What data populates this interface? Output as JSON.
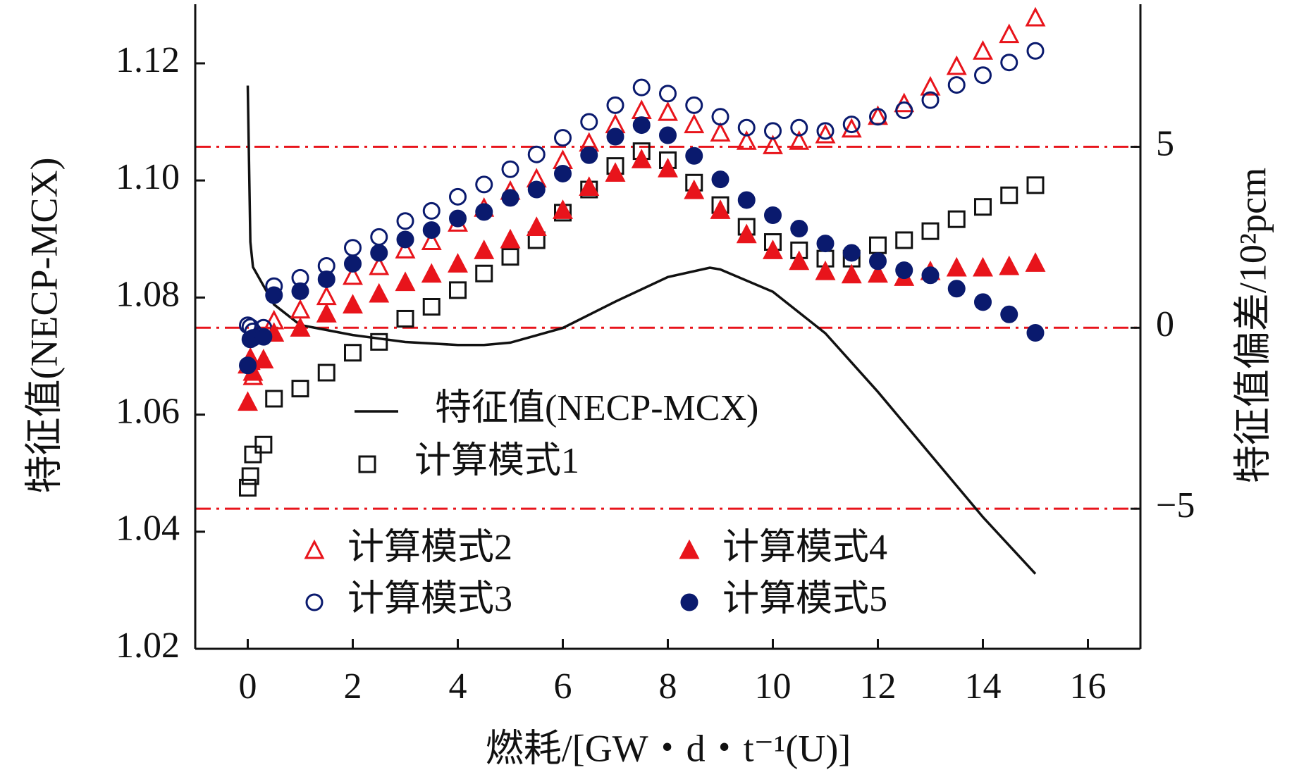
{
  "chart_data": {
    "type": "line",
    "x_label": "燃耗/[GW・d・t⁻¹(U)]",
    "y_label": "特征值(NECP-MCX)",
    "y2_label": "特征值偏差/10²pcm",
    "xlim": [
      -1,
      17
    ],
    "xticks": [
      0,
      2,
      4,
      6,
      8,
      10,
      12,
      14,
      16
    ],
    "ylim": [
      1.02,
      1.1301
    ],
    "yticks": [
      1.02,
      1.04,
      1.06,
      1.08,
      {
        "value": 1.1,
        "label": "1.10"
      },
      1.12
    ],
    "y2lim": [
      -8.87,
      8.94
    ],
    "y2ticks": [
      {
        "value": -5,
        "label": "−5"
      },
      0,
      5
    ],
    "y2grid": true,
    "grid_color": "#e8141b",
    "series": [
      {
        "name": "特征值(NECP-MCX)",
        "color": "#111111",
        "marker": "none",
        "x": [
          0,
          0.05,
          0.1,
          0.5,
          1,
          2,
          3,
          4,
          4.5,
          5,
          6,
          7,
          8,
          8.8,
          9,
          10,
          11,
          12,
          13,
          14,
          15
        ],
        "values": [
          1.1162,
          1.0895,
          1.0852,
          1.0788,
          1.0753,
          1.0736,
          1.0724,
          1.0719,
          1.0719,
          1.0723,
          1.0748,
          1.0793,
          1.0835,
          1.0851,
          1.0848,
          1.081,
          1.0739,
          1.0639,
          1.0532,
          1.0425,
          1.0328
        ]
      },
      {
        "name": "计算模式1",
        "color": "#111111",
        "marker": "square",
        "filled": false,
        "axis": "y2",
        "x": [
          0,
          0.05,
          0.1,
          0.3,
          0.5,
          1,
          1.5,
          2,
          2.5,
          3,
          3.5,
          4,
          4.5,
          5,
          5.5,
          6,
          6.5,
          7,
          7.5,
          8,
          8.5,
          9,
          9.5,
          10,
          10.5,
          11,
          11.5,
          12,
          12.5,
          13,
          13.5,
          14,
          14.5,
          15
        ],
        "values": [
          -4.42,
          -4.1,
          -3.5,
          -3.23,
          -1.96,
          -1.68,
          -1.24,
          -0.69,
          -0.39,
          0.25,
          0.58,
          1.04,
          1.5,
          1.96,
          2.42,
          3.18,
          3.82,
          4.47,
          4.88,
          4.63,
          4.01,
          3.39,
          2.79,
          2.37,
          2.14,
          1.91,
          1.91,
          2.28,
          2.42,
          2.67,
          3.0,
          3.34,
          3.66,
          3.94
        ]
      },
      {
        "name": "计算模式2",
        "color": "#e8141b",
        "marker": "triangle",
        "filled": false,
        "axis": "y2",
        "x": [
          0,
          0.05,
          0.1,
          0.3,
          0.5,
          1,
          1.5,
          2,
          2.5,
          3,
          3.5,
          4,
          4.5,
          5,
          5.5,
          6,
          6.5,
          7,
          7.5,
          8,
          8.5,
          9,
          9.5,
          10,
          10.5,
          11,
          11.5,
          12,
          12.5,
          13,
          13.5,
          14,
          14.5,
          15
        ],
        "values": [
          -1.04,
          -0.85,
          -1.36,
          -0.9,
          0.18,
          0.48,
          0.85,
          1.41,
          1.68,
          2.14,
          2.37,
          2.88,
          3.29,
          3.76,
          4.1,
          4.61,
          5.09,
          5.6,
          5.99,
          5.94,
          5.6,
          5.37,
          5.14,
          5.02,
          5.14,
          5.32,
          5.48,
          5.83,
          6.18,
          6.64,
          7.21,
          7.63,
          8.09,
          8.55
        ]
      },
      {
        "name": "计算模式3",
        "color": "#0a1a6e",
        "marker": "circle",
        "filled": false,
        "axis": "y2",
        "x": [
          0,
          0.05,
          0.1,
          0.3,
          0.5,
          1,
          1.5,
          2,
          2.5,
          3,
          3.5,
          4,
          4.5,
          5,
          5.5,
          6,
          6.5,
          7,
          7.5,
          8,
          8.5,
          9,
          9.5,
          10,
          10.5,
          11,
          11.5,
          12,
          12.5,
          13,
          13.5,
          14,
          14.5,
          15
        ],
        "values": [
          0.07,
          0.02,
          -0.1,
          0.0,
          1.15,
          1.38,
          1.71,
          2.21,
          2.51,
          2.95,
          3.23,
          3.62,
          3.96,
          4.38,
          4.79,
          5.25,
          5.69,
          6.15,
          6.64,
          6.47,
          6.15,
          5.83,
          5.53,
          5.44,
          5.53,
          5.44,
          5.62,
          5.83,
          6.01,
          6.29,
          6.71,
          6.98,
          7.33,
          7.65
        ]
      },
      {
        "name": "计算模式4",
        "color": "#e8141b",
        "marker": "triangle",
        "filled": true,
        "axis": "y2",
        "x": [
          0,
          0.05,
          0.1,
          0.3,
          0.5,
          1,
          1.5,
          2,
          2.5,
          3,
          3.5,
          4,
          4.5,
          5,
          5.5,
          6,
          6.5,
          7,
          7.5,
          8,
          8.5,
          9,
          9.5,
          10,
          10.5,
          11,
          11.5,
          12,
          12.5,
          13,
          13.5,
          14,
          14.5,
          15
        ],
        "values": [
          -2.07,
          -0.94,
          -1.24,
          -0.9,
          -0.16,
          -0.02,
          0.37,
          0.62,
          0.92,
          1.24,
          1.47,
          1.75,
          2.12,
          2.42,
          2.76,
          3.23,
          3.87,
          4.26,
          4.63,
          4.38,
          3.78,
          3.23,
          2.56,
          2.12,
          1.82,
          1.54,
          1.45,
          1.47,
          1.38,
          1.54,
          1.64,
          1.64,
          1.68,
          1.77
        ]
      },
      {
        "name": "计算模式5",
        "color": "#0a1a6e",
        "marker": "circle",
        "filled": true,
        "axis": "y2",
        "x": [
          0,
          0.05,
          0.1,
          0.3,
          0.5,
          1,
          1.5,
          2,
          2.5,
          3,
          3.5,
          4,
          4.5,
          5,
          5.5,
          6,
          6.5,
          7,
          7.5,
          8,
          8.5,
          9,
          9.5,
          10,
          10.5,
          11,
          11.5,
          12,
          12.5,
          13,
          13.5,
          14,
          14.5,
          15
        ],
        "values": [
          -1.04,
          -0.32,
          -0.28,
          -0.25,
          0.9,
          1.01,
          1.34,
          1.77,
          2.07,
          2.44,
          2.7,
          3.02,
          3.2,
          3.59,
          3.82,
          4.26,
          4.77,
          5.28,
          5.6,
          5.32,
          4.75,
          4.1,
          3.53,
          3.11,
          2.74,
          2.33,
          2.07,
          1.84,
          1.59,
          1.45,
          1.08,
          0.71,
          0.37,
          -0.14
        ]
      }
    ]
  }
}
